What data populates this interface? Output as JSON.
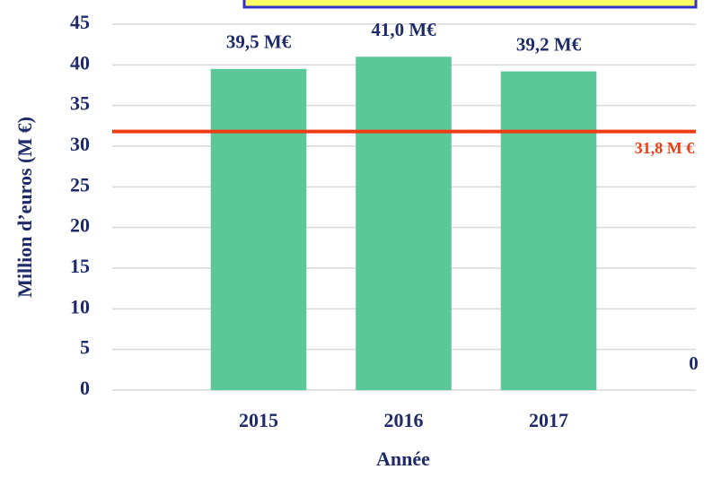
{
  "chart_data": {
    "type": "bar",
    "categories": [
      "2015",
      "2016",
      "2017",
      null
    ],
    "values": [
      39.5,
      41.0,
      39.2,
      0
    ],
    "value_labels": [
      "39,5 M€",
      "41,0 M€",
      "39,2 M€",
      "0"
    ],
    "color": "#5cc89a",
    "ylim": [
      0,
      45
    ],
    "yticks": [
      0,
      5,
      10,
      15,
      20,
      25,
      30,
      35,
      40,
      45
    ],
    "grid": true,
    "x_label": "Année",
    "y_label": "Million d’euros (M €)",
    "reference_line": {
      "value": 31.8,
      "label": "31,8 M €",
      "color": "#f03c14"
    }
  }
}
